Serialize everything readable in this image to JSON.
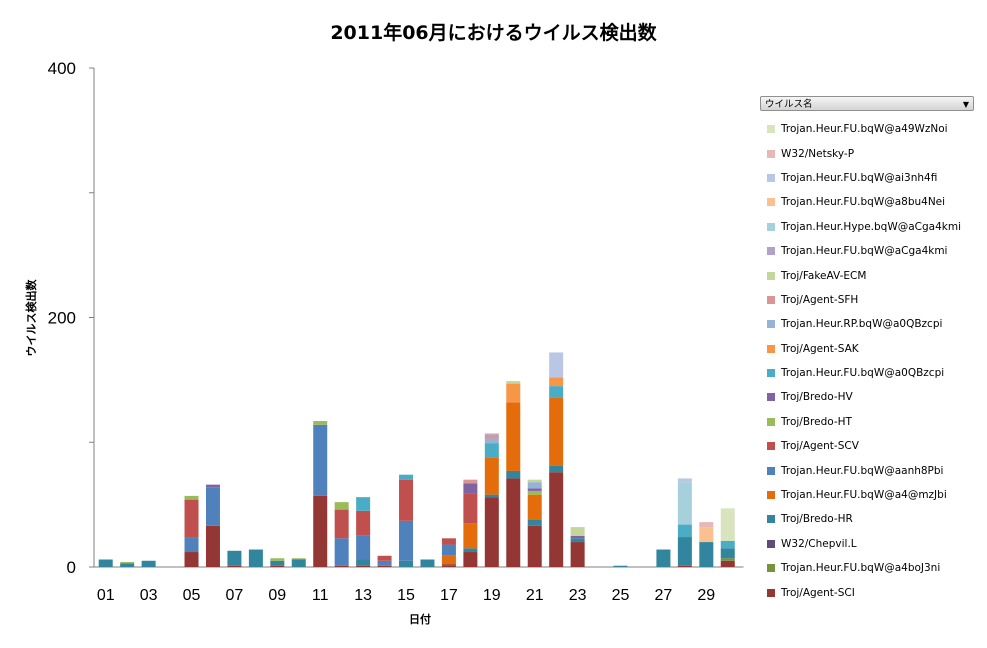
{
  "chart_data": {
    "type": "bar",
    "stacked": true,
    "title": "2011年06月におけるウイルス検出数",
    "xlabel": "日付",
    "ylabel": "ウイルス検出数",
    "ylim": [
      0,
      400
    ],
    "yticks": [
      "0",
      "200",
      "400"
    ],
    "categories": [
      "01",
      "02",
      "03",
      "04",
      "05",
      "06",
      "07",
      "08",
      "09",
      "10",
      "11",
      "12",
      "13",
      "14",
      "15",
      "16",
      "17",
      "18",
      "19",
      "20",
      "21",
      "22",
      "23",
      "24",
      "25",
      "26",
      "27",
      "28",
      "29",
      "30"
    ],
    "xtick_labels": [
      "01",
      "03",
      "05",
      "07",
      "09",
      "11",
      "13",
      "15",
      "17",
      "19",
      "21",
      "23",
      "25",
      "27",
      "29"
    ],
    "legend_filter_label": "ウイルス名",
    "series": [
      {
        "name": "Troj/Agent-SCI",
        "color": "#943634",
        "values": [
          0,
          0,
          0,
          0,
          12,
          33,
          1,
          0,
          1,
          0,
          57,
          1,
          1,
          1,
          0,
          0,
          1,
          12,
          56,
          71,
          33,
          76,
          20,
          0,
          0,
          0,
          0,
          1,
          0,
          5
        ]
      },
      {
        "name": "Trojan.Heur.FU.bqW@a4boJ3ni",
        "color": "#77933C",
        "values": [
          0,
          0,
          0,
          0,
          0,
          0,
          0,
          0,
          0,
          0,
          0,
          0,
          0,
          0,
          0,
          0,
          0,
          0,
          0,
          0,
          0,
          0,
          0,
          0,
          0,
          0,
          0,
          0,
          0,
          2
        ]
      },
      {
        "name": "W32/Chepvil.L",
        "color": "#604A7B",
        "values": [
          0,
          0,
          0,
          0,
          0,
          0,
          0,
          0,
          0,
          0,
          0,
          0,
          0,
          0,
          0,
          0,
          1,
          0,
          0,
          0,
          0,
          0,
          0,
          0,
          0,
          0,
          0,
          0,
          0,
          0
        ]
      },
      {
        "name": "Troj/Bredo-HR",
        "color": "#31859C",
        "values": [
          6,
          3,
          5,
          0,
          0,
          0,
          12,
          14,
          4,
          6,
          0,
          0,
          5,
          0,
          5,
          6,
          0,
          3,
          2,
          6,
          5,
          5,
          3,
          0,
          1,
          0,
          14,
          23,
          20,
          8
        ]
      },
      {
        "name": "Trojan.Heur.FU.bqW@a4@mzJbi",
        "color": "#E46C0A",
        "values": [
          0,
          0,
          0,
          0,
          0,
          0,
          0,
          0,
          0,
          0,
          0,
          0,
          0,
          0,
          0,
          0,
          7,
          20,
          30,
          55,
          20,
          55,
          0,
          0,
          0,
          0,
          0,
          0,
          0,
          0
        ]
      },
      {
        "name": "Trojan.Heur.FU.bqW@aanh8Pbi",
        "color": "#4F81BD",
        "values": [
          0,
          0,
          0,
          0,
          12,
          31,
          0,
          0,
          0,
          0,
          57,
          22,
          19,
          4,
          32,
          0,
          9,
          0,
          0,
          0,
          0,
          0,
          0,
          0,
          0,
          0,
          0,
          0,
          0,
          0
        ]
      },
      {
        "name": "Troj/Agent-SCV",
        "color": "#C0504D",
        "values": [
          0,
          0,
          0,
          0,
          30,
          0,
          0,
          0,
          0,
          0,
          0,
          23,
          20,
          4,
          33,
          0,
          5,
          24,
          0,
          0,
          0,
          0,
          0,
          0,
          0,
          0,
          0,
          0,
          0,
          0
        ]
      },
      {
        "name": "Troj/Bredo-HT",
        "color": "#9BBB59",
        "values": [
          0,
          1,
          0,
          0,
          3,
          0,
          0,
          0,
          2,
          1,
          3,
          6,
          0,
          0,
          0,
          0,
          0,
          0,
          0,
          0,
          3,
          0,
          0,
          0,
          0,
          0,
          0,
          0,
          0,
          0
        ]
      },
      {
        "name": "Troj/Bredo-HV",
        "color": "#8064A2",
        "values": [
          0,
          0,
          0,
          0,
          0,
          2,
          0,
          0,
          0,
          0,
          0,
          0,
          0,
          0,
          0,
          0,
          0,
          8,
          0,
          0,
          2,
          0,
          2,
          0,
          0,
          0,
          0,
          0,
          0,
          0
        ]
      },
      {
        "name": "Trojan.Heur.FU.bqW@a0QBzcpi",
        "color": "#4BACC6",
        "values": [
          0,
          0,
          0,
          0,
          0,
          0,
          0,
          0,
          0,
          0,
          0,
          0,
          11,
          0,
          4,
          0,
          0,
          0,
          11,
          0,
          0,
          9,
          0,
          0,
          0,
          0,
          0,
          10,
          0,
          6
        ]
      },
      {
        "name": "Troj/Agent-SAK",
        "color": "#F79646",
        "values": [
          0,
          0,
          0,
          0,
          0,
          0,
          0,
          0,
          0,
          0,
          0,
          0,
          0,
          0,
          0,
          0,
          0,
          0,
          0,
          15,
          0,
          7,
          0,
          0,
          0,
          0,
          0,
          0,
          0,
          0
        ]
      },
      {
        "name": "Trojan.Heur.RP.bqW@a0QBzcpi",
        "color": "#95B3D7",
        "values": [
          0,
          0,
          0,
          0,
          0,
          0,
          0,
          0,
          0,
          0,
          0,
          0,
          0,
          0,
          0,
          0,
          0,
          0,
          4,
          0,
          5,
          0,
          0,
          0,
          0,
          0,
          0,
          0,
          0,
          0
        ]
      },
      {
        "name": "Troj/Agent-SFH",
        "color": "#D99694",
        "values": [
          0,
          0,
          0,
          0,
          0,
          0,
          0,
          0,
          0,
          0,
          0,
          0,
          0,
          0,
          0,
          0,
          0,
          3,
          3,
          0,
          0,
          0,
          0,
          0,
          0,
          0,
          0,
          0,
          0,
          0
        ]
      },
      {
        "name": "Troj/FakeAV-ECM",
        "color": "#C3D69B",
        "values": [
          0,
          0,
          0,
          0,
          0,
          0,
          0,
          0,
          0,
          0,
          0,
          0,
          0,
          0,
          0,
          0,
          0,
          0,
          0,
          2,
          2,
          0,
          7,
          0,
          0,
          0,
          0,
          0,
          0,
          0
        ]
      },
      {
        "name": "Trojan.Heur.FU.bqW@aCga4kmi",
        "color": "#B2A2C7",
        "values": [
          0,
          0,
          0,
          0,
          0,
          0,
          0,
          0,
          0,
          0,
          0,
          0,
          0,
          0,
          0,
          0,
          0,
          0,
          1,
          0,
          0,
          0,
          0,
          0,
          0,
          0,
          0,
          0,
          0,
          0
        ]
      },
      {
        "name": "Trojan.Heur.Hype.bqW@aCga4kmi",
        "color": "#A5D0DC",
        "values": [
          0,
          0,
          0,
          0,
          0,
          0,
          0,
          0,
          0,
          0,
          0,
          0,
          0,
          0,
          0,
          0,
          0,
          0,
          0,
          0,
          0,
          0,
          0,
          0,
          0,
          0,
          0,
          34,
          0,
          0
        ]
      },
      {
        "name": "Trojan.Heur.FU.bqW@a8bu4Nei",
        "color": "#FAC090",
        "values": [
          0,
          0,
          0,
          0,
          0,
          0,
          0,
          0,
          0,
          0,
          0,
          0,
          0,
          0,
          0,
          0,
          0,
          0,
          0,
          0,
          0,
          0,
          0,
          0,
          0,
          0,
          0,
          0,
          12,
          0
        ]
      },
      {
        "name": "Trojan.Heur.FU.bqW@ai3nh4fi",
        "color": "#B9C7E4",
        "values": [
          0,
          0,
          0,
          0,
          0,
          0,
          0,
          0,
          0,
          0,
          0,
          0,
          0,
          0,
          0,
          0,
          0,
          0,
          0,
          0,
          0,
          20,
          0,
          0,
          0,
          0,
          0,
          3,
          0,
          0
        ]
      },
      {
        "name": "W32/Netsky-P",
        "color": "#E6B9B8",
        "values": [
          0,
          0,
          0,
          0,
          0,
          0,
          0,
          0,
          0,
          0,
          0,
          0,
          0,
          0,
          0,
          0,
          0,
          0,
          0,
          0,
          0,
          0,
          0,
          0,
          0,
          0,
          0,
          0,
          4,
          0
        ]
      },
      {
        "name": "Trojan.Heur.FU.bqW@a49WzNoi",
        "color": "#D7E4BD",
        "values": [
          0,
          0,
          0,
          0,
          0,
          0,
          0,
          0,
          0,
          0,
          0,
          0,
          0,
          0,
          0,
          0,
          0,
          0,
          0,
          0,
          0,
          0,
          0,
          0,
          0,
          0,
          0,
          0,
          0,
          26
        ]
      }
    ]
  }
}
